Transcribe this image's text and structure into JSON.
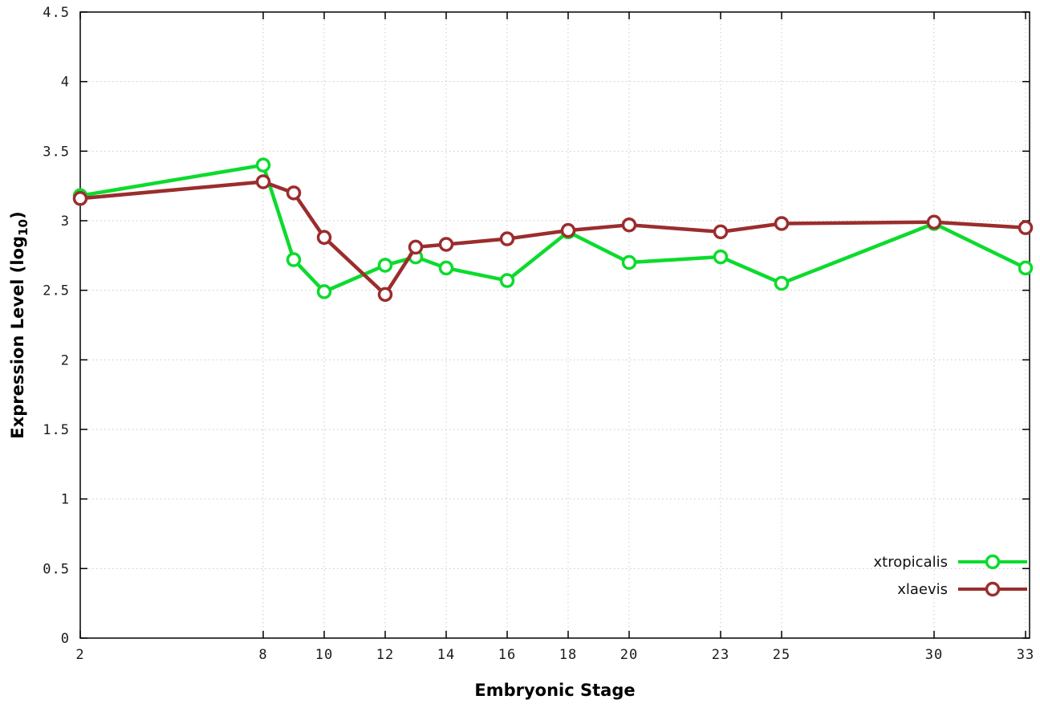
{
  "chart_data": {
    "type": "line",
    "title": "",
    "xlabel": "Embryonic Stage",
    "ylabel_prefix": "Expression Level (log",
    "ylabel_sub": "10",
    "ylabel_suffix": ")",
    "x": [
      2,
      8,
      9,
      10,
      12,
      13,
      14,
      16,
      18,
      20,
      23,
      25,
      30,
      33
    ],
    "series": [
      {
        "name": "xtropicalis",
        "color": "#0cdb2d",
        "values": [
          3.18,
          3.4,
          2.72,
          2.49,
          2.68,
          2.74,
          2.66,
          2.57,
          2.92,
          2.7,
          2.74,
          2.55,
          2.98,
          2.66
        ]
      },
      {
        "name": "xlaevis",
        "color": "#9b2d2d",
        "values": [
          3.16,
          3.28,
          3.2,
          2.88,
          2.47,
          2.81,
          2.83,
          2.87,
          2.93,
          2.97,
          2.92,
          2.98,
          2.99,
          2.95
        ]
      }
    ],
    "xlim": [
      2,
      33
    ],
    "ylim": [
      0,
      4.5
    ],
    "x_ticks": [
      2,
      8,
      10,
      12,
      14,
      16,
      18,
      20,
      23,
      25,
      30,
      33
    ],
    "y_ticks": [
      0,
      0.5,
      1,
      1.5,
      2,
      2.5,
      3,
      3.5,
      4,
      4.5
    ],
    "y_tick_labels": [
      "0",
      "0.5",
      "1",
      "1.5",
      "2",
      "2.5",
      "3",
      "3.5",
      "4",
      "4.5"
    ],
    "grid": true,
    "legend_position": "bottom-right",
    "marker": "open-circle"
  }
}
